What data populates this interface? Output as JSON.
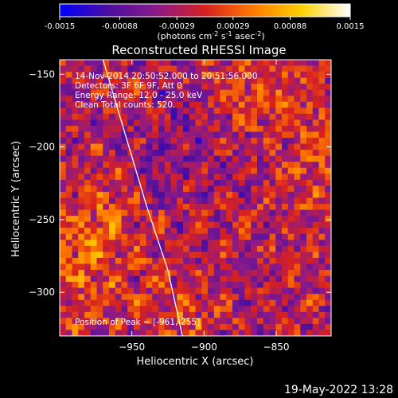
{
  "colorbar": {
    "ticks": [
      "-0.0015",
      "-0.00088",
      "-0.00029",
      "0.00029",
      "0.00088",
      "0.0015"
    ],
    "tick_values": [
      -0.0015,
      -0.00088,
      -0.00029,
      0.00029,
      0.00088,
      0.0015
    ],
    "min": -0.0015,
    "max": 0.0015,
    "unit_label": "(photons cm",
    "unit_sup1": "-2",
    "unit_mid": " s",
    "unit_sup2": "-1",
    "unit_mid2": " asec",
    "unit_sup3": "-2",
    "unit_end": ")",
    "colors": [
      "#0000ff",
      "#4a0ea0",
      "#8b1a8a",
      "#d72020",
      "#ff7a00",
      "#ffd200",
      "#ffffff"
    ]
  },
  "chart_data": {
    "type": "heatmap",
    "title": "Reconstructed RHESSI Image",
    "xlabel": "Heliocentric X (arcsec)",
    "ylabel": "Heliocentric Y (arcsec)",
    "xlim": [
      -1000,
      -812
    ],
    "ylim": [
      -330,
      -140
    ],
    "xticks": [
      -950,
      -900,
      -850
    ],
    "yticks": [
      -150,
      -200,
      -250,
      -300
    ],
    "colormap": "RHESSI blue-purple-red-yellow-white",
    "limb_curve": [
      [
        -970,
        -140
      ],
      [
        -955,
        -190
      ],
      [
        -940,
        -240
      ],
      [
        -925,
        -285
      ],
      [
        -915,
        -330
      ]
    ],
    "grid": {
      "cols": 44,
      "rows": 46,
      "seed": 20141114
    },
    "annotations": {
      "line1": "14-Nov-2014 20:50:52.000 to 20:51:56.000",
      "line2": "Detectors: 3F 6F 9F, Att 0",
      "line3": "Energy Range: 12.0 - 25.0 keV",
      "line4": "Clean   Total counts: 520.",
      "peak": "Position of Peak = [-961,-255]"
    },
    "peak_position": [
      -961,
      -255
    ]
  },
  "footer": {
    "date": "19-May-2022 13:28"
  }
}
